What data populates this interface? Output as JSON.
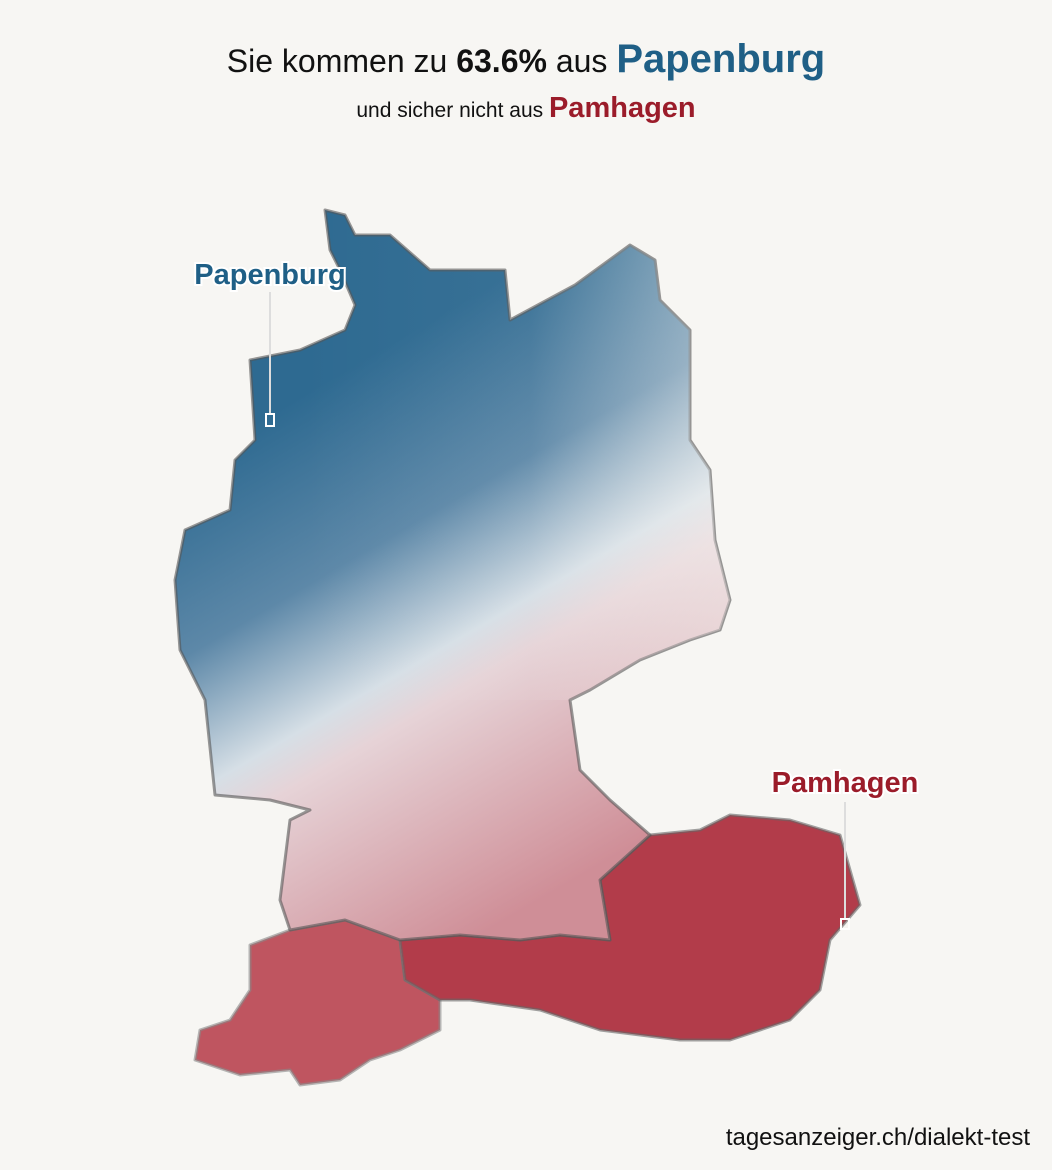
{
  "header": {
    "title_prefix": "Sie kommen zu",
    "title_percent": "63.6%",
    "title_middle": "aus",
    "title_place": "Papenburg",
    "subtitle_prefix": "und sicher nicht aus",
    "subtitle_place": "Pamhagen"
  },
  "map": {
    "labels": [
      {
        "label": "Papenburg"
      },
      {
        "label": "Pamhagen"
      }
    ]
  },
  "footer": {
    "source": "tagesanzeiger.ch/dialekt-test"
  }
}
